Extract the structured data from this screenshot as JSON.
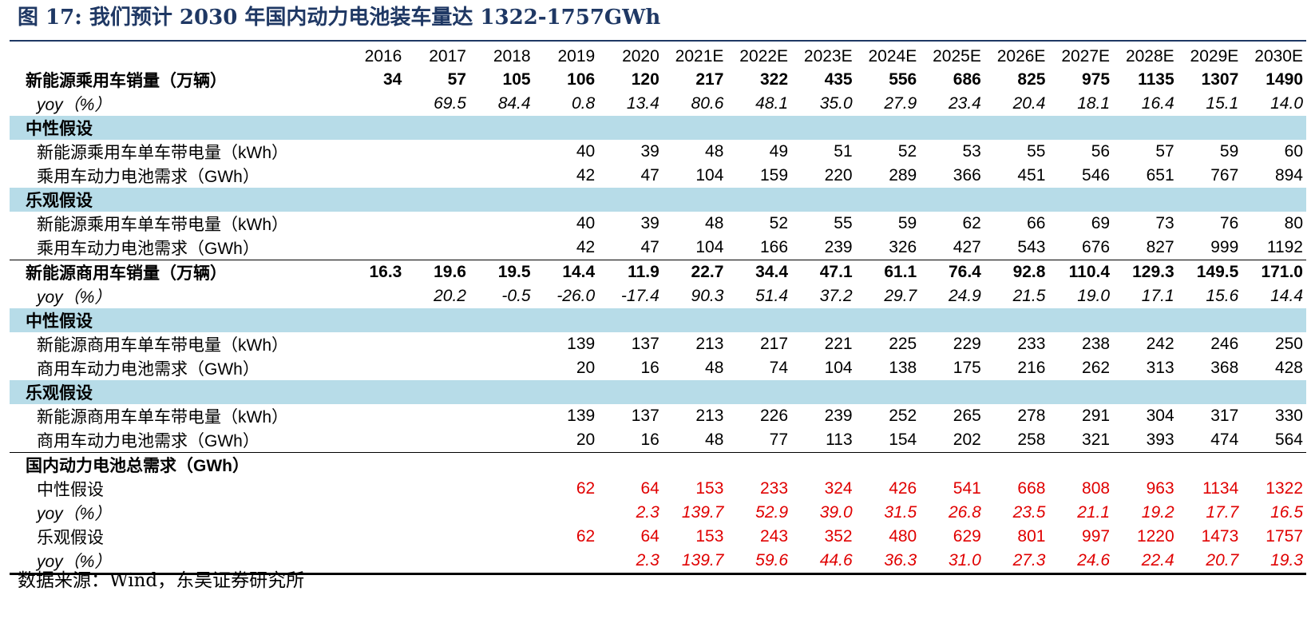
{
  "title": "图 17:  我们预计 2030 年国内动力电池装车量达 1322-1757GWh",
  "source": "数据来源：Wind，东吴证券研究所",
  "table": {
    "years": [
      "2016",
      "2017",
      "2018",
      "2019",
      "2020",
      "2021E",
      "2022E",
      "2023E",
      "2024E",
      "2025E",
      "2026E",
      "2027E",
      "2028E",
      "2029E",
      "2030E"
    ],
    "rows": [
      {
        "type": "main",
        "label": "新能源乘用车销量（万辆）",
        "values": [
          "34",
          "57",
          "105",
          "106",
          "120",
          "217",
          "322",
          "435",
          "556",
          "686",
          "825",
          "975",
          "1135",
          "1307",
          "1490"
        ]
      },
      {
        "type": "yoy",
        "label": "yoy（%）",
        "values": [
          "",
          "69.5",
          "84.4",
          "0.8",
          "13.4",
          "80.6",
          "48.1",
          "35.0",
          "27.9",
          "23.4",
          "20.4",
          "18.1",
          "16.4",
          "15.1",
          "14.0"
        ]
      },
      {
        "type": "section",
        "label": "中性假设",
        "values": [
          "",
          "",
          "",
          "",
          "",
          "",
          "",
          "",
          "",
          "",
          "",
          "",
          "",
          "",
          ""
        ]
      },
      {
        "type": "sub",
        "label": "新能源乘用车单车带电量（kWh）",
        "values": [
          "",
          "",
          "",
          "40",
          "39",
          "48",
          "49",
          "51",
          "52",
          "53",
          "55",
          "56",
          "57",
          "59",
          "60"
        ]
      },
      {
        "type": "sub",
        "label": "乘用车动力电池需求（GWh）",
        "values": [
          "",
          "",
          "",
          "42",
          "47",
          "104",
          "159",
          "220",
          "289",
          "366",
          "451",
          "546",
          "651",
          "767",
          "894"
        ]
      },
      {
        "type": "section",
        "label": "乐观假设",
        "values": [
          "",
          "",
          "",
          "",
          "",
          "",
          "",
          "",
          "",
          "",
          "",
          "",
          "",
          "",
          ""
        ]
      },
      {
        "type": "sub",
        "label": "新能源乘用车单车带电量（kWh）",
        "values": [
          "",
          "",
          "",
          "40",
          "39",
          "48",
          "52",
          "55",
          "59",
          "62",
          "66",
          "69",
          "73",
          "76",
          "80"
        ]
      },
      {
        "type": "sub",
        "label": "乘用车动力电池需求（GWh）",
        "values": [
          "",
          "",
          "",
          "42",
          "47",
          "104",
          "166",
          "239",
          "326",
          "427",
          "543",
          "676",
          "827",
          "999",
          "1192"
        ]
      },
      {
        "type": "main topline",
        "label": "新能源商用车销量（万辆）",
        "values": [
          "16.3",
          "19.6",
          "19.5",
          "14.4",
          "11.9",
          "22.7",
          "34.4",
          "47.1",
          "61.1",
          "76.4",
          "92.8",
          "110.4",
          "129.3",
          "149.5",
          "171.0"
        ]
      },
      {
        "type": "yoy",
        "label": "yoy（%）",
        "values": [
          "",
          "20.2",
          "-0.5",
          "-26.0",
          "-17.4",
          "90.3",
          "51.4",
          "37.2",
          "29.7",
          "24.9",
          "21.5",
          "19.0",
          "17.1",
          "15.6",
          "14.4"
        ]
      },
      {
        "type": "section",
        "label": "中性假设",
        "values": [
          "",
          "",
          "",
          "",
          "",
          "",
          "",
          "",
          "",
          "",
          "",
          "",
          "",
          "",
          ""
        ]
      },
      {
        "type": "sub",
        "label": "新能源商用车单车带电量（kWh）",
        "values": [
          "",
          "",
          "",
          "139",
          "137",
          "213",
          "217",
          "221",
          "225",
          "229",
          "233",
          "238",
          "242",
          "246",
          "250"
        ]
      },
      {
        "type": "sub",
        "label": "商用车动力电池需求（GWh）",
        "values": [
          "",
          "",
          "",
          "20",
          "16",
          "48",
          "74",
          "104",
          "138",
          "175",
          "216",
          "262",
          "313",
          "368",
          "428"
        ]
      },
      {
        "type": "section",
        "label": "乐观假设",
        "values": [
          "",
          "",
          "",
          "",
          "",
          "",
          "",
          "",
          "",
          "",
          "",
          "",
          "",
          "",
          ""
        ]
      },
      {
        "type": "sub",
        "label": "新能源商用车单车带电量（kWh）",
        "values": [
          "",
          "",
          "",
          "139",
          "137",
          "213",
          "226",
          "239",
          "252",
          "265",
          "278",
          "291",
          "304",
          "317",
          "330"
        ]
      },
      {
        "type": "sub",
        "label": "商用车动力电池需求（GWh）",
        "values": [
          "",
          "",
          "",
          "20",
          "16",
          "48",
          "77",
          "113",
          "154",
          "202",
          "258",
          "321",
          "393",
          "474",
          "564"
        ]
      },
      {
        "type": "main topline",
        "label": "国内动力电池总需求（GWh）",
        "values": [
          "",
          "",
          "",
          "",
          "",
          "",
          "",
          "",
          "",
          "",
          "",
          "",
          "",
          "",
          ""
        ]
      },
      {
        "type": "sub red",
        "label": "中性假设",
        "values": [
          "",
          "",
          "",
          "62",
          "64",
          "153",
          "233",
          "324",
          "426",
          "541",
          "668",
          "808",
          "963",
          "1134",
          "1322"
        ]
      },
      {
        "type": "yoy red",
        "label": "yoy（%）",
        "values": [
          "",
          "",
          "",
          "",
          "2.3",
          "139.7",
          "52.9",
          "39.0",
          "31.5",
          "26.8",
          "23.5",
          "21.1",
          "19.2",
          "17.7",
          "16.5"
        ]
      },
      {
        "type": "sub red",
        "label": "乐观假设",
        "values": [
          "",
          "",
          "",
          "62",
          "64",
          "153",
          "243",
          "352",
          "480",
          "629",
          "801",
          "997",
          "1220",
          "1473",
          "1757"
        ]
      },
      {
        "type": "yoy red lastrow",
        "label": "yoy（%）",
        "values": [
          "",
          "",
          "",
          "",
          "2.3",
          "139.7",
          "59.6",
          "44.6",
          "36.3",
          "31.0",
          "27.3",
          "24.6",
          "22.4",
          "20.7",
          "19.3"
        ]
      }
    ]
  }
}
